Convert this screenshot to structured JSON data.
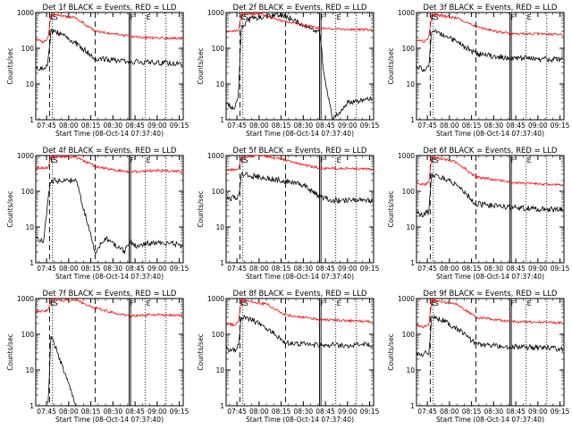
{
  "figure": {
    "xlabel": "Start Time (08-Oct-14 07:37:40)",
    "ylabel": "Counts/sec",
    "xticks": [
      "07:45",
      "08:00",
      "08:15",
      "08:30",
      "08:45",
      "09:00",
      "09:15"
    ],
    "yticks": [
      "1",
      "10",
      "100",
      "1000"
    ],
    "colors": {
      "events": "#000000",
      "lld": "#ff0000"
    }
  },
  "chart_data": [
    {
      "type": "line",
      "title": "Det 1f BLACK = Events, RED = LLD",
      "xlabel": "Start Time (08-Oct-14 07:37:40)",
      "ylabel": "Counts/sec",
      "ylog": true,
      "ylim": [
        1,
        1000
      ],
      "x_range": [
        "07:37:40",
        "09:17:40"
      ],
      "markers": [
        "07:47",
        "07:49",
        "08:18",
        "08:41",
        "08:42",
        "08:52",
        "09:06"
      ],
      "marker_labels": [
        "E",
        "S",
        "F",
        "E"
      ],
      "series": [
        {
          "name": "Events",
          "color": "#000000",
          "points": [
            [
              "07:38",
              30
            ],
            [
              "07:43",
              25
            ],
            [
              "07:46",
              40
            ],
            [
              "07:48",
              300
            ],
            [
              "07:55",
              260
            ],
            [
              "08:05",
              140
            ],
            [
              "08:18",
              50
            ],
            [
              "08:40",
              45
            ],
            [
              "08:45",
              42
            ],
            [
              "09:00",
              40
            ],
            [
              "09:17",
              38
            ]
          ]
        },
        {
          "name": "LLD",
          "color": "#ff0000",
          "points": [
            [
              "07:38",
              180
            ],
            [
              "07:43",
              150
            ],
            [
              "07:46",
              200
            ],
            [
              "07:48",
              900
            ],
            [
              "07:55",
              800
            ],
            [
              "08:05",
              700
            ],
            [
              "08:18",
              300
            ],
            [
              "08:41",
              220
            ],
            [
              "08:50",
              200
            ],
            [
              "09:17",
              190
            ]
          ]
        }
      ]
    },
    {
      "type": "line",
      "title": "Det 2f BLACK = Events, RED = LLD",
      "xlabel": "Start Time (08-Oct-14 07:37:40)",
      "ylabel": "Counts/sec",
      "ylog": true,
      "ylim": [
        1,
        1000
      ],
      "x_range": [
        "07:37:40",
        "09:17:40"
      ],
      "markers": [
        "07:47",
        "07:49",
        "08:18",
        "08:41",
        "08:42",
        "08:52",
        "09:06"
      ],
      "marker_labels": [
        "E",
        "S",
        "F",
        "E"
      ],
      "series": [
        {
          "name": "Events",
          "color": "#000000",
          "points": [
            [
              "07:38",
              3
            ],
            [
              "07:43",
              2
            ],
            [
              "07:46",
              5
            ],
            [
              "07:48",
              400
            ],
            [
              "07:55",
              700
            ],
            [
              "08:05",
              800
            ],
            [
              "08:18",
              800
            ],
            [
              "08:35",
              350
            ],
            [
              "08:41",
              300
            ],
            [
              "08:44",
              20
            ],
            [
              "08:50",
              1
            ],
            [
              "09:00",
              3
            ],
            [
              "09:17",
              4
            ]
          ]
        },
        {
          "name": "LLD",
          "color": "#ff0000",
          "points": [
            [
              "07:38",
              300
            ],
            [
              "07:46",
              300
            ],
            [
              "07:48",
              900
            ],
            [
              "08:00",
              950
            ],
            [
              "08:15",
              600
            ],
            [
              "08:30",
              450
            ],
            [
              "08:41",
              360
            ],
            [
              "09:00",
              340
            ],
            [
              "09:17",
              330
            ]
          ]
        }
      ]
    },
    {
      "type": "line",
      "title": "Det 3f BLACK = Events, RED = LLD",
      "xlabel": "Start Time (08-Oct-14 07:37:40)",
      "ylabel": "Counts/sec",
      "ylog": true,
      "ylim": [
        1,
        1000
      ],
      "x_range": [
        "07:37:40",
        "09:17:40"
      ],
      "markers": [
        "07:47",
        "07:49",
        "08:18",
        "08:41",
        "08:42",
        "08:52",
        "09:06"
      ],
      "marker_labels": [
        "E",
        "S",
        "F",
        "E"
      ],
      "series": [
        {
          "name": "Events",
          "color": "#000000",
          "points": [
            [
              "07:38",
              30
            ],
            [
              "07:43",
              25
            ],
            [
              "07:46",
              35
            ],
            [
              "07:48",
              300
            ],
            [
              "07:55",
              250
            ],
            [
              "08:05",
              150
            ],
            [
              "08:18",
              70
            ],
            [
              "08:30",
              60
            ],
            [
              "08:41",
              55
            ],
            [
              "09:00",
              50
            ],
            [
              "09:17",
              48
            ]
          ]
        },
        {
          "name": "LLD",
          "color": "#ff0000",
          "points": [
            [
              "07:38",
              180
            ],
            [
              "07:43",
              150
            ],
            [
              "07:46",
              200
            ],
            [
              "07:48",
              900
            ],
            [
              "07:55",
              800
            ],
            [
              "08:05",
              700
            ],
            [
              "08:18",
              400
            ],
            [
              "08:30",
              300
            ],
            [
              "08:41",
              260
            ],
            [
              "09:00",
              250
            ],
            [
              "09:17",
              240
            ]
          ]
        }
      ]
    },
    {
      "type": "line",
      "title": "Det 4f BLACK = Events, RED = LLD",
      "xlabel": "Start Time (08-Oct-14 07:37:40)",
      "ylabel": "Counts/sec",
      "ylog": true,
      "ylim": [
        1,
        1000
      ],
      "x_range": [
        "07:37:40",
        "09:17:40"
      ],
      "markers": [
        "07:47",
        "07:49",
        "08:18",
        "08:41",
        "08:42",
        "08:52",
        "09:06"
      ],
      "marker_labels": [
        "E",
        "S",
        "F",
        "E"
      ],
      "series": [
        {
          "name": "Events",
          "color": "#000000",
          "points": [
            [
              "07:38",
              5
            ],
            [
              "07:43",
              4
            ],
            [
              "07:46",
              60
            ],
            [
              "07:48",
              200
            ],
            [
              "08:05",
              200
            ],
            [
              "08:18",
              2
            ],
            [
              "08:25",
              5
            ],
            [
              "08:32",
              3
            ],
            [
              "08:38",
              2
            ],
            [
              "08:41",
              4
            ],
            [
              "08:45",
              3
            ],
            [
              "09:00",
              4
            ],
            [
              "09:17",
              3
            ]
          ]
        },
        {
          "name": "LLD",
          "color": "#ff0000",
          "points": [
            [
              "07:38",
              450
            ],
            [
              "07:46",
              450
            ],
            [
              "07:48",
              950
            ],
            [
              "08:05",
              900
            ],
            [
              "08:18",
              500
            ],
            [
              "08:30",
              400
            ],
            [
              "08:41",
              350
            ],
            [
              "09:00",
              380
            ],
            [
              "09:17",
              360
            ]
          ]
        }
      ]
    },
    {
      "type": "line",
      "title": "Det 5f BLACK = Events, RED = LLD",
      "xlabel": "Start Time (08-Oct-14 07:37:40)",
      "ylabel": "Counts/sec",
      "ylog": true,
      "ylim": [
        1,
        1000
      ],
      "x_range": [
        "07:37:40",
        "09:17:40"
      ],
      "markers": [
        "07:47",
        "07:49",
        "08:18",
        "08:41",
        "08:42",
        "08:52",
        "09:06"
      ],
      "marker_labels": [
        "E",
        "S",
        "F",
        "E"
      ],
      "series": [
        {
          "name": "Events",
          "color": "#000000",
          "points": [
            [
              "07:38",
              60
            ],
            [
              "07:46",
              70
            ],
            [
              "07:48",
              300
            ],
            [
              "08:00",
              250
            ],
            [
              "08:15",
              200
            ],
            [
              "08:30",
              150
            ],
            [
              "08:41",
              70
            ],
            [
              "08:50",
              55
            ],
            [
              "09:17",
              55
            ]
          ]
        },
        {
          "name": "LLD",
          "color": "#ff0000",
          "points": [
            [
              "07:38",
              400
            ],
            [
              "07:46",
              400
            ],
            [
              "07:48",
              900
            ],
            [
              "08:00",
              1000
            ],
            [
              "08:15",
              800
            ],
            [
              "08:30",
              550
            ],
            [
              "08:41",
              450
            ],
            [
              "09:00",
              430
            ],
            [
              "09:17",
              420
            ]
          ]
        }
      ]
    },
    {
      "type": "line",
      "title": "Det 6f BLACK = Events, RED = LLD",
      "xlabel": "Start Time (08-Oct-14 07:37:40)",
      "ylabel": "Counts/sec",
      "ylog": true,
      "ylim": [
        1,
        1000
      ],
      "x_range": [
        "07:37:40",
        "09:17:40"
      ],
      "markers": [
        "07:47",
        "07:49",
        "08:18",
        "08:41",
        "08:42",
        "08:52",
        "09:06"
      ],
      "marker_labels": [
        "E",
        "S",
        "F",
        "E"
      ],
      "series": [
        {
          "name": "Events",
          "color": "#000000",
          "points": [
            [
              "07:38",
              25
            ],
            [
              "07:43",
              22
            ],
            [
              "07:46",
              28
            ],
            [
              "07:48",
              300
            ],
            [
              "07:55",
              250
            ],
            [
              "08:05",
              150
            ],
            [
              "08:18",
              45
            ],
            [
              "08:41",
              35
            ],
            [
              "09:00",
              32
            ],
            [
              "09:17",
              30
            ]
          ]
        },
        {
          "name": "LLD",
          "color": "#ff0000",
          "points": [
            [
              "07:38",
              170
            ],
            [
              "07:43",
              150
            ],
            [
              "07:46",
              180
            ],
            [
              "07:48",
              900
            ],
            [
              "07:55",
              800
            ],
            [
              "08:05",
              650
            ],
            [
              "08:18",
              250
            ],
            [
              "08:41",
              180
            ],
            [
              "09:00",
              160
            ],
            [
              "09:17",
              150
            ]
          ]
        }
      ]
    },
    {
      "type": "line",
      "title": "Det 7f BLACK = Events, RED = LLD",
      "xlabel": "Start Time (08-Oct-14 07:37:40)",
      "ylabel": "Counts/sec",
      "ylog": true,
      "ylim": [
        1,
        1000
      ],
      "x_range": [
        "07:37:40",
        "09:17:40"
      ],
      "markers": [
        "07:47",
        "07:49",
        "08:18",
        "08:41",
        "08:42",
        "08:52",
        "09:06"
      ],
      "marker_labels": [
        "E",
        "S",
        "F",
        "E"
      ],
      "series": [
        {
          "name": "Events",
          "color": "#000000",
          "points": [
            [
              "07:46",
              1
            ],
            [
              "07:48",
              100
            ],
            [
              "08:05",
              1
            ]
          ]
        },
        {
          "name": "LLD",
          "color": "#ff0000",
          "points": [
            [
              "07:38",
              450
            ],
            [
              "07:46",
              450
            ],
            [
              "07:48",
              900
            ],
            [
              "08:05",
              900
            ],
            [
              "08:18",
              550
            ],
            [
              "08:30",
              400
            ],
            [
              "08:41",
              330
            ],
            [
              "09:00",
              350
            ],
            [
              "09:17",
              340
            ]
          ]
        }
      ]
    },
    {
      "type": "line",
      "title": "Det 8f BLACK = Events, RED = LLD",
      "xlabel": "Start Time (08-Oct-14 07:37:40)",
      "ylabel": "Counts/sec",
      "ylog": true,
      "ylim": [
        1,
        1000
      ],
      "x_range": [
        "07:37:40",
        "09:17:40"
      ],
      "markers": [
        "07:47",
        "07:49",
        "08:18",
        "08:41",
        "08:42",
        "08:52",
        "09:06"
      ],
      "marker_labels": [
        "E",
        "S",
        "F",
        "E"
      ],
      "series": [
        {
          "name": "Events",
          "color": "#000000",
          "points": [
            [
              "07:38",
              40
            ],
            [
              "07:43",
              35
            ],
            [
              "07:46",
              45
            ],
            [
              "07:48",
              300
            ],
            [
              "07:55",
              250
            ],
            [
              "08:05",
              150
            ],
            [
              "08:18",
              60
            ],
            [
              "08:41",
              50
            ],
            [
              "09:00",
              50
            ],
            [
              "09:17",
              50
            ]
          ]
        },
        {
          "name": "LLD",
          "color": "#ff0000",
          "points": [
            [
              "07:38",
              200
            ],
            [
              "07:43",
              180
            ],
            [
              "07:46",
              220
            ],
            [
              "07:48",
              900
            ],
            [
              "07:55",
              800
            ],
            [
              "08:05",
              700
            ],
            [
              "08:18",
              350
            ],
            [
              "08:41",
              260
            ],
            [
              "09:00",
              240
            ],
            [
              "09:17",
              230
            ]
          ]
        }
      ]
    },
    {
      "type": "line",
      "title": "Det 9f BLACK = Events, RED = LLD",
      "xlabel": "Start Time (08-Oct-14 07:37:40)",
      "ylabel": "Counts/sec",
      "ylog": true,
      "ylim": [
        1,
        1000
      ],
      "x_range": [
        "07:37:40",
        "09:17:40"
      ],
      "markers": [
        "07:47",
        "07:49",
        "08:18",
        "08:41",
        "08:42",
        "08:52",
        "09:06"
      ],
      "marker_labels": [
        "E",
        "S",
        "F",
        "E"
      ],
      "series": [
        {
          "name": "Events",
          "color": "#000000",
          "points": [
            [
              "07:38",
              30
            ],
            [
              "07:43",
              28
            ],
            [
              "07:46",
              30
            ],
            [
              "07:48",
              300
            ],
            [
              "07:55",
              250
            ],
            [
              "08:05",
              150
            ],
            [
              "08:18",
              55
            ],
            [
              "08:41",
              45
            ],
            [
              "09:00",
              42
            ],
            [
              "09:17",
              40
            ]
          ]
        },
        {
          "name": "LLD",
          "color": "#ff0000",
          "points": [
            [
              "07:38",
              180
            ],
            [
              "07:43",
              160
            ],
            [
              "07:46",
              190
            ],
            [
              "07:48",
              900
            ],
            [
              "07:55",
              800
            ],
            [
              "08:05",
              700
            ],
            [
              "08:18",
              300
            ],
            [
              "08:41",
              230
            ],
            [
              "09:00",
              220
            ],
            [
              "09:17",
              210
            ]
          ]
        }
      ]
    }
  ]
}
